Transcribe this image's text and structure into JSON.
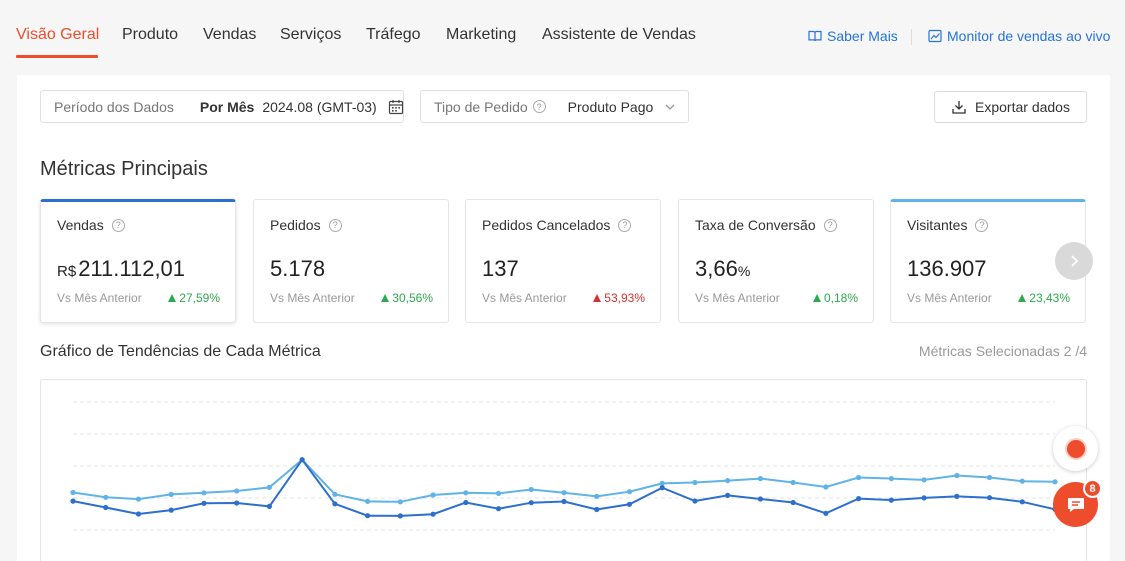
{
  "nav": {
    "tabs": [
      {
        "label": "Visão Geral",
        "active": true
      },
      {
        "label": "Produto"
      },
      {
        "label": "Vendas"
      },
      {
        "label": "Serviços"
      },
      {
        "label": "Tráfego"
      },
      {
        "label": "Marketing"
      },
      {
        "label": "Assistente de Vendas"
      }
    ],
    "learn_more": "Saber Mais",
    "live_monitor": "Monitor de vendas ao vivo"
  },
  "filters": {
    "period_label": "Período dos Dados",
    "period_mode": "Por Mês",
    "period_value": "2024.08 (GMT-03)",
    "order_type_label": "Tipo de Pedido",
    "order_type_value": "Produto Pago"
  },
  "export_label": "Exportar dados",
  "section_title": "Métricas Principais",
  "metrics": [
    {
      "name": "Vendas",
      "currency": "R$",
      "value": "211.112,01",
      "compare": "Vs Mês Anterior",
      "change": "27,59%",
      "direction": "up"
    },
    {
      "name": "Pedidos",
      "value": "5.178",
      "compare": "Vs Mês Anterior",
      "change": "30,56%",
      "direction": "up"
    },
    {
      "name": "Pedidos Cancelados",
      "value": "137",
      "compare": "Vs Mês Anterior",
      "change": "53,93%",
      "direction": "down"
    },
    {
      "name": "Taxa de Conversão",
      "value": "3,66",
      "unit": "%",
      "compare": "Vs Mês Anterior",
      "change": "0,18%",
      "direction": "up"
    },
    {
      "name": "Visitantes",
      "value": "136.907",
      "compare": "Vs Mês Anterior",
      "change": "23,43%",
      "direction": "up"
    }
  ],
  "chart_title": "Gráfico de Tendências de Cada Métrica",
  "chart_meta": "Métricas Selecionadas 2 /4",
  "chat_badge": "8",
  "colors": {
    "accent": "#ee4d2d",
    "link": "#2673dd",
    "series_dark": "#2d6fcc",
    "series_light": "#5fb3e6",
    "up": "#2fa84f",
    "down": "#d0332f"
  },
  "chart_data": {
    "type": "line",
    "x": [
      1,
      2,
      3,
      4,
      5,
      6,
      7,
      8,
      9,
      10,
      11,
      12,
      13,
      14,
      15,
      16,
      17,
      18,
      19,
      20,
      21,
      22,
      23,
      24,
      25,
      26,
      27,
      28,
      29,
      30,
      31
    ],
    "series": [
      {
        "color": "#5fb3e6",
        "values": [
          41.5,
          36.7,
          34.9,
          39.6,
          41.2,
          43.0,
          46.6,
          74.3,
          39.7,
          32.6,
          32.2,
          39.0,
          41.2,
          40.6,
          44.5,
          41.3,
          37.6,
          42.3,
          50.6,
          51.5,
          53.4,
          55.4,
          51.5,
          47.0,
          56.5,
          55.4,
          54.1,
          58.5,
          56.5,
          52.8,
          52.2
        ]
      },
      {
        "color": "#2d6fcc",
        "values": [
          32.9,
          26.5,
          20.0,
          23.9,
          30.7,
          31.0,
          27.6,
          74.3,
          30.2,
          18.3,
          18.1,
          19.8,
          31.5,
          25.3,
          31.3,
          32.5,
          24.5,
          29.7,
          46.3,
          33.0,
          38.6,
          35.0,
          31.5,
          20.7,
          35.4,
          33.9,
          36.1,
          37.6,
          36.3,
          32.2,
          24.7
        ]
      }
    ]
  }
}
